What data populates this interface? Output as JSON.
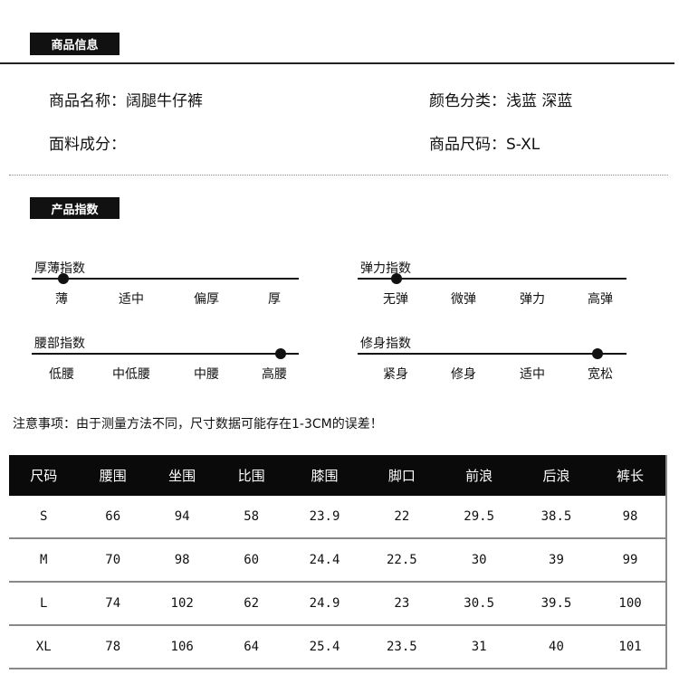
{
  "product_info": {
    "tag": "商品信息",
    "name": "商品名称：阔腿牛仔裤",
    "color": "颜色分类：浅蓝 深蓝",
    "fabric": "面料成分：",
    "size": "商品尺码：S-XL"
  },
  "index": {
    "tag": "产品指数",
    "sliders": [
      {
        "title": "厚薄指数",
        "labels": [
          "薄",
          "适中",
          "偏厚",
          "厚"
        ],
        "selected": 0
      },
      {
        "title": "弹力指数",
        "labels": [
          "无弹",
          "微弹",
          "弹力",
          "高弹"
        ],
        "selected": 0
      },
      {
        "title": "腰部指数",
        "labels": [
          "低腰",
          "中低腰",
          "中腰",
          "高腰"
        ],
        "selected": 3
      },
      {
        "title": "修身指数",
        "labels": [
          "紧身",
          "修身",
          "适中",
          "宽松"
        ],
        "selected": 3
      }
    ]
  },
  "note": "注意事项：由于测量方法不同，尺寸数据可能存在1-3CM的误差！",
  "table": {
    "headers": [
      "尺码",
      "腰围",
      "坐围",
      "比围",
      "膝围",
      "脚口",
      "前浪",
      "后浪",
      "裤长"
    ],
    "rows": [
      [
        "S",
        "66",
        "94",
        "58",
        "23.9",
        "22",
        "29.5",
        "38.5",
        "98"
      ],
      [
        "M",
        "70",
        "98",
        "60",
        "24.4",
        "22.5",
        "30",
        "39",
        "99"
      ],
      [
        "L",
        "74",
        "102",
        "62",
        "24.9",
        "23",
        "30.5",
        "39.5",
        "100"
      ],
      [
        "XL",
        "78",
        "106",
        "64",
        "25.4",
        "23.5",
        "31",
        "40",
        "101"
      ]
    ]
  }
}
